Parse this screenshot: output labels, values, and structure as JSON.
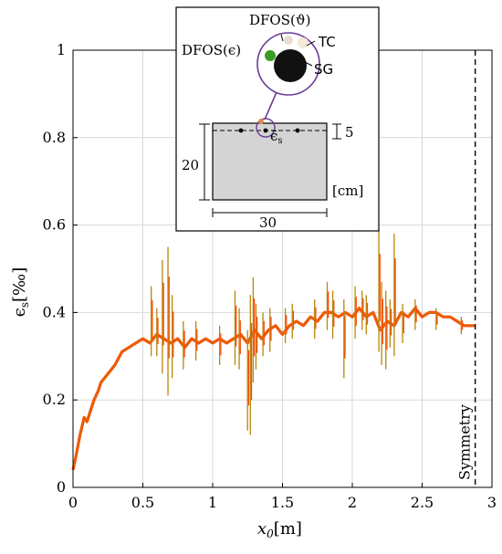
{
  "chart_data": {
    "type": "line",
    "title": "",
    "xlabel": "x",
    "xlabel_sub": "0",
    "xlabel_unit": "[m]",
    "ylabel": "ϵ",
    "ylabel_sub": "s",
    "ylabel_unit": "[‰]",
    "xlim": [
      0,
      3
    ],
    "ylim": [
      0,
      1
    ],
    "x_ticks": [
      0,
      0.5,
      1,
      1.5,
      2,
      2.5,
      3
    ],
    "x_tick_labels": [
      "0",
      "0.5",
      "1",
      "1.5",
      "2",
      "2.5",
      "3"
    ],
    "y_ticks": [
      0,
      0.2,
      0.4,
      0.6,
      0.8,
      1
    ],
    "y_tick_labels": [
      "0",
      "0.2",
      "0.4",
      "0.6",
      "0.8",
      "1"
    ],
    "grid": true,
    "colors": {
      "line": "#ff4a00",
      "line_dark": "#b8860b",
      "symmetry": "#000000",
      "inset_circle": "#6a3d9a",
      "inset_green": "#3a9d23"
    },
    "series": [
      {
        "x": [
          0.0,
          0.02,
          0.05,
          0.08,
          0.1,
          0.13,
          0.15,
          0.18,
          0.2,
          0.25,
          0.3,
          0.35,
          0.4,
          0.45,
          0.5,
          0.55,
          0.6,
          0.65,
          0.7,
          0.75,
          0.8,
          0.85,
          0.9,
          0.95,
          1.0,
          1.05,
          1.1,
          1.15,
          1.2,
          1.25,
          1.3,
          1.35,
          1.4,
          1.45,
          1.5,
          1.55,
          1.6,
          1.65,
          1.7,
          1.75,
          1.8,
          1.85,
          1.9,
          1.95,
          2.0,
          2.05,
          2.1,
          2.15,
          2.2,
          2.25,
          2.3,
          2.35,
          2.4,
          2.45,
          2.5,
          2.55,
          2.6,
          2.65,
          2.7,
          2.75,
          2.8,
          2.85,
          2.88
        ],
        "y": [
          0.04,
          0.07,
          0.12,
          0.16,
          0.15,
          0.18,
          0.2,
          0.22,
          0.24,
          0.26,
          0.28,
          0.31,
          0.32,
          0.33,
          0.34,
          0.33,
          0.35,
          0.34,
          0.33,
          0.34,
          0.32,
          0.34,
          0.33,
          0.34,
          0.33,
          0.34,
          0.33,
          0.34,
          0.35,
          0.33,
          0.36,
          0.34,
          0.36,
          0.37,
          0.35,
          0.37,
          0.38,
          0.37,
          0.39,
          0.38,
          0.4,
          0.4,
          0.39,
          0.4,
          0.39,
          0.41,
          0.39,
          0.4,
          0.36,
          0.38,
          0.37,
          0.4,
          0.39,
          0.41,
          0.39,
          0.4,
          0.4,
          0.39,
          0.39,
          0.38,
          0.37,
          0.37,
          0.37
        ]
      }
    ],
    "spikes": [
      {
        "x": 0.56,
        "lo": 0.3,
        "hi": 0.46
      },
      {
        "x": 0.6,
        "lo": 0.3,
        "hi": 0.41
      },
      {
        "x": 0.64,
        "lo": 0.26,
        "hi": 0.52
      },
      {
        "x": 0.68,
        "lo": 0.21,
        "hi": 0.55
      },
      {
        "x": 0.71,
        "lo": 0.25,
        "hi": 0.44
      },
      {
        "x": 0.79,
        "lo": 0.27,
        "hi": 0.38
      },
      {
        "x": 0.88,
        "lo": 0.29,
        "hi": 0.38
      },
      {
        "x": 1.05,
        "lo": 0.28,
        "hi": 0.37
      },
      {
        "x": 1.16,
        "lo": 0.28,
        "hi": 0.45
      },
      {
        "x": 1.19,
        "lo": 0.27,
        "hi": 0.41
      },
      {
        "x": 1.25,
        "lo": 0.13,
        "hi": 0.36
      },
      {
        "x": 1.27,
        "lo": 0.12,
        "hi": 0.44
      },
      {
        "x": 1.29,
        "lo": 0.24,
        "hi": 0.48
      },
      {
        "x": 1.31,
        "lo": 0.27,
        "hi": 0.42
      },
      {
        "x": 1.36,
        "lo": 0.3,
        "hi": 0.4
      },
      {
        "x": 1.41,
        "lo": 0.31,
        "hi": 0.41
      },
      {
        "x": 1.52,
        "lo": 0.33,
        "hi": 0.41
      },
      {
        "x": 1.57,
        "lo": 0.34,
        "hi": 0.42
      },
      {
        "x": 1.73,
        "lo": 0.34,
        "hi": 0.43
      },
      {
        "x": 1.82,
        "lo": 0.36,
        "hi": 0.47
      },
      {
        "x": 1.86,
        "lo": 0.34,
        "hi": 0.45
      },
      {
        "x": 1.94,
        "lo": 0.25,
        "hi": 0.43
      },
      {
        "x": 2.02,
        "lo": 0.34,
        "hi": 0.46
      },
      {
        "x": 2.07,
        "lo": 0.36,
        "hi": 0.45
      },
      {
        "x": 2.1,
        "lo": 0.35,
        "hi": 0.44
      },
      {
        "x": 2.19,
        "lo": 0.31,
        "hi": 0.59
      },
      {
        "x": 2.21,
        "lo": 0.28,
        "hi": 0.47
      },
      {
        "x": 2.24,
        "lo": 0.27,
        "hi": 0.45
      },
      {
        "x": 2.27,
        "lo": 0.32,
        "hi": 0.43
      },
      {
        "x": 2.3,
        "lo": 0.3,
        "hi": 0.58
      },
      {
        "x": 2.36,
        "lo": 0.33,
        "hi": 0.42
      },
      {
        "x": 2.45,
        "lo": 0.36,
        "hi": 0.43
      },
      {
        "x": 2.6,
        "lo": 0.36,
        "hi": 0.41
      },
      {
        "x": 2.78,
        "lo": 0.35,
        "hi": 0.39
      }
    ],
    "symmetry_x": 2.88,
    "annotations": {
      "symmetry_label": "Symmetry"
    },
    "inset": {
      "labels": {
        "dfos_theta": "DFOS(ϑ)",
        "dfos_eps": "DFOS(ϵ)",
        "tc": "TC",
        "sg": "SG",
        "eps_bar": "ϵ̄",
        "eps_bar_sub": "s",
        "dim_depth": "20",
        "dim_width": "30",
        "dim_cover": "5",
        "unit": "[cm]"
      }
    }
  }
}
